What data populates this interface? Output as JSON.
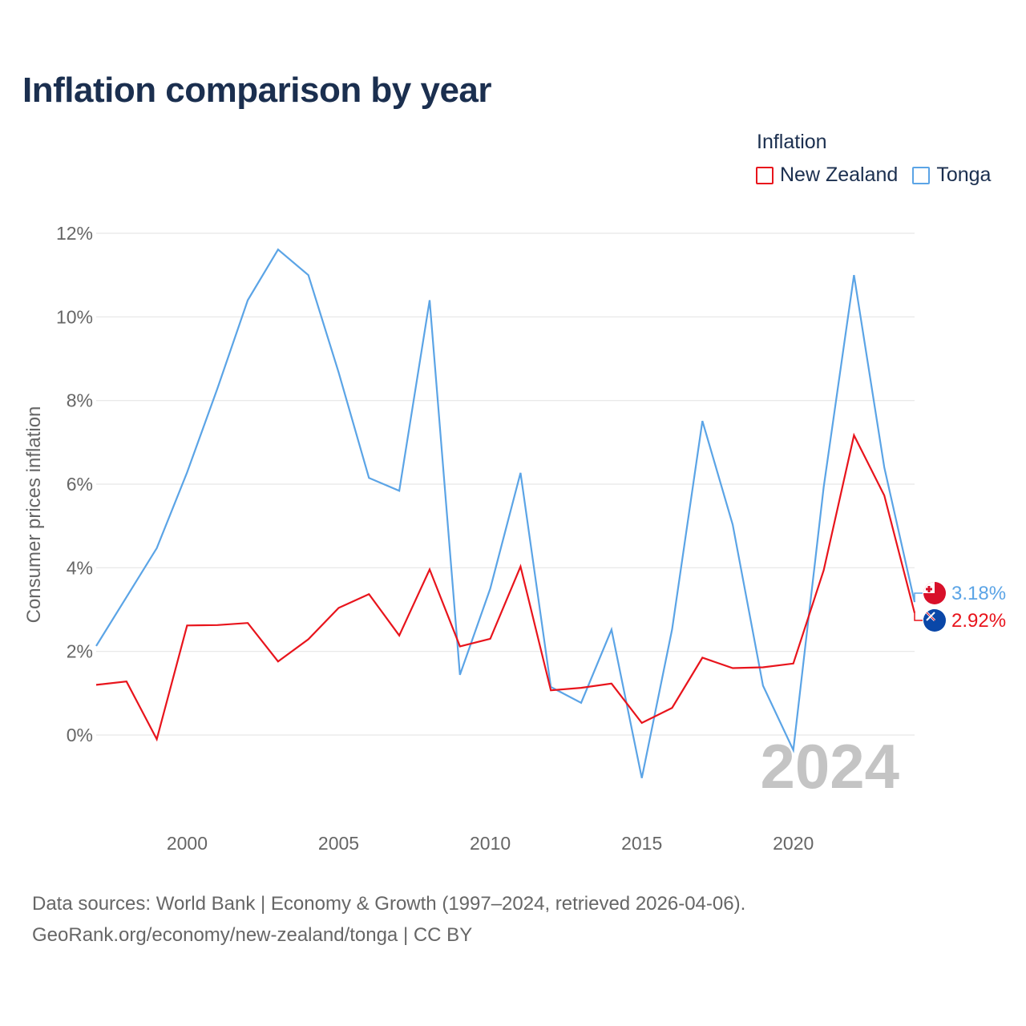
{
  "title": "Inflation comparison by year",
  "legend": {
    "title": "Inflation",
    "items": [
      {
        "label": "New Zealand",
        "color": "#e8141c"
      },
      {
        "label": "Tonga",
        "color": "#5ba4e6"
      }
    ]
  },
  "sources": {
    "line1": "Data sources: World Bank | Economy & Growth (1997–2024, retrieved 2026-04-06).",
    "line2": "GeoRank.org/economy/new-zealand/tonga | CC BY"
  },
  "chart_data": {
    "type": "line",
    "title": "Inflation comparison by year",
    "xlabel": "",
    "ylabel": "Consumer prices inflation",
    "xlim": [
      1997,
      2024
    ],
    "ylim": [
      -2,
      12
    ],
    "x_ticks": [
      2000,
      2005,
      2010,
      2015,
      2020
    ],
    "y_ticks": [
      0,
      2,
      4,
      6,
      8,
      10,
      12
    ],
    "y_tick_labels": [
      "0%",
      "2%",
      "4%",
      "6%",
      "8%",
      "10%",
      "12%"
    ],
    "grid": true,
    "legend_position": "top-right",
    "annotation_year": "2024",
    "x": [
      1997,
      1998,
      1999,
      2000,
      2001,
      2002,
      2003,
      2004,
      2005,
      2006,
      2007,
      2008,
      2009,
      2010,
      2011,
      2012,
      2013,
      2014,
      2015,
      2016,
      2017,
      2018,
      2019,
      2020,
      2021,
      2022,
      2023,
      2024
    ],
    "series": [
      {
        "name": "New Zealand",
        "color": "#e8141c",
        "end_label": "2.92%",
        "flag": "new-zealand-flag-icon",
        "values": [
          1.2,
          1.28,
          -0.1,
          2.62,
          2.63,
          2.68,
          1.76,
          2.29,
          3.04,
          3.37,
          2.38,
          3.96,
          2.12,
          2.3,
          4.03,
          1.07,
          1.13,
          1.23,
          0.29,
          0.65,
          1.85,
          1.6,
          1.62,
          1.71,
          3.94,
          7.17,
          5.73,
          2.92
        ]
      },
      {
        "name": "Tonga",
        "color": "#5ba4e6",
        "end_label": "3.18%",
        "flag": "tonga-flag-icon",
        "values": [
          2.13,
          3.3,
          4.47,
          6.28,
          8.29,
          10.4,
          11.61,
          11.0,
          8.67,
          6.15,
          5.84,
          10.4,
          1.44,
          3.5,
          6.27,
          1.15,
          0.77,
          2.52,
          -1.03,
          2.53,
          7.51,
          5.03,
          1.18,
          -0.36,
          5.93,
          11.0,
          6.4,
          3.18
        ]
      }
    ]
  }
}
